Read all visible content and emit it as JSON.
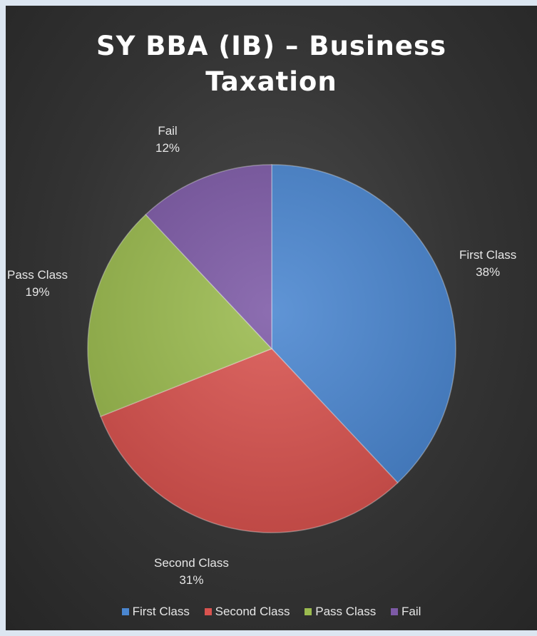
{
  "chart_data": {
    "type": "pie",
    "title": "SY BBA (IB) – Business Taxation",
    "title_lines": [
      "SY BBA (IB) – Business",
      "Taxation"
    ],
    "categories": [
      "First Class",
      "Second Class",
      "Pass Class",
      "Fail"
    ],
    "values": [
      38,
      31,
      19,
      12
    ],
    "value_labels": [
      "38%",
      "31%",
      "19%",
      "12%"
    ],
    "colors": [
      "#4a86d0",
      "#d9534f",
      "#9bbb4f",
      "#7d5aa6"
    ],
    "start_angle_deg": 0,
    "direction": "clockwise",
    "legend_position": "bottom",
    "background": "#333333"
  }
}
